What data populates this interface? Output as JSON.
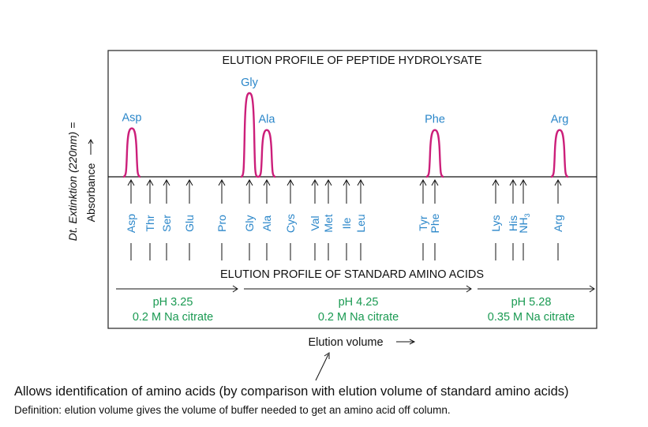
{
  "colors": {
    "peak": "#cc1f7a",
    "peak_label": "#2a86c9",
    "std_label": "#2a86c9",
    "buffer_text": "#1a9a52",
    "ink": "#111111"
  },
  "diagram": {
    "top_title": "ELUTION PROFILE OF  PEPTIDE HYDROLYSATE",
    "mid_title": "ELUTION PROFILE OF STANDARD AMINO ACIDS",
    "y_label_outer": "Dt. Extinktion (220nm) =",
    "y_label_inner": "Absorbance",
    "x_label": "Elution volume",
    "peaks": [
      {
        "label": "Asp",
        "relative_height": 0.58
      },
      {
        "label": "Gly",
        "relative_height": 1.0
      },
      {
        "label": "Ala",
        "relative_height": 0.56
      },
      {
        "label": "Phe",
        "relative_height": 0.56
      },
      {
        "label": "Arg",
        "relative_height": 0.56
      }
    ],
    "standards": [
      "Asp",
      "Thr",
      "Ser",
      "Glu",
      "Pro",
      "Gly",
      "Ala",
      "Cys",
      "Val",
      "Met",
      "Ile",
      "Leu",
      "Tyr",
      "Phe",
      "Lys",
      "His",
      "NH",
      "Arg"
    ],
    "nh3_subscript": "3",
    "buffers": [
      {
        "ph": "pH 3.25",
        "buffer": "0.2 M Na citrate"
      },
      {
        "ph": "pH 4.25",
        "buffer": "0.2 M Na citrate"
      },
      {
        "ph": "pH 5.28",
        "buffer": "0.35 M Na citrate"
      }
    ]
  },
  "caption_line1": "Allows identification of amino acids (by comparison with elution volume of standard amino acids)",
  "caption_line2": "Definition: elution volume gives the volume of buffer needed to get an amino acid off column."
}
